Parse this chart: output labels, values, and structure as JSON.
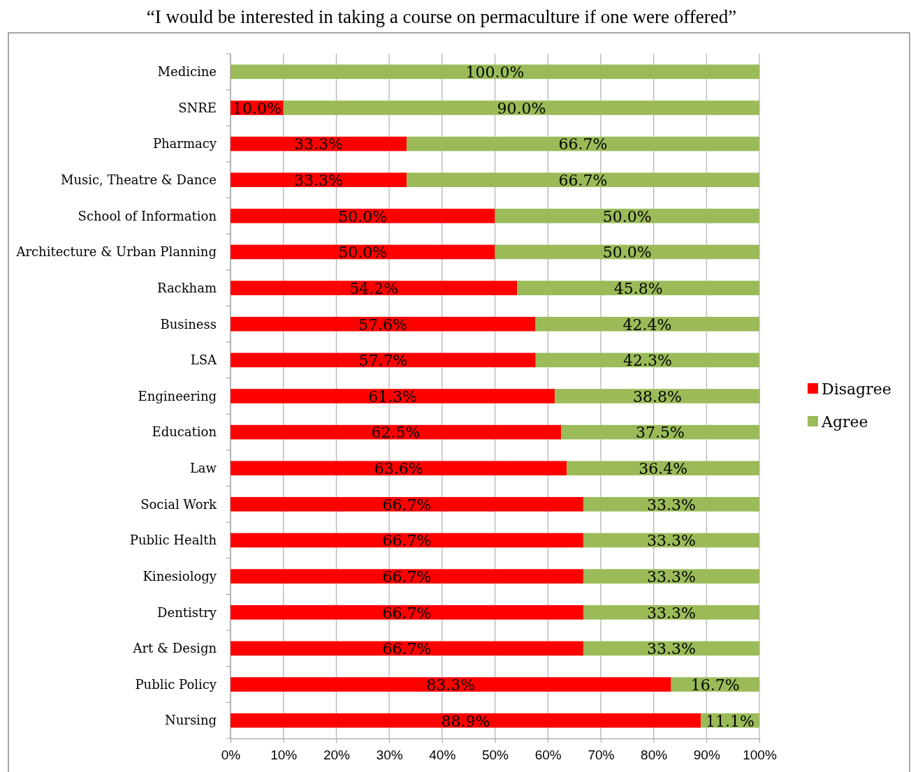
{
  "chart_data": {
    "type": "bar",
    "orientation": "horizontal",
    "stacked": true,
    "title": "“I would be interested in taking a course on permaculture if one were offered”",
    "categories": [
      "Medicine",
      "SNRE",
      "Pharmacy",
      "Music, Theatre & Dance",
      "School of Information",
      "Architecture & Urban Planning",
      "Rackham",
      "Business",
      "LSA",
      "Engineering",
      "Education",
      "Law",
      "Social Work",
      "Public Health",
      "Kinesiology",
      "Dentistry",
      "Art & Design",
      "Public Policy",
      "Nursing"
    ],
    "series": [
      {
        "name": "Disagree",
        "color": "#ff0000",
        "values": [
          0,
          10.0,
          33.3,
          33.3,
          50.0,
          50.0,
          54.2,
          57.6,
          57.7,
          61.3,
          62.5,
          63.6,
          66.7,
          66.7,
          66.7,
          66.7,
          66.7,
          83.3,
          88.9
        ],
        "value_labels": [
          null,
          "10.0%",
          "33.3%",
          "33.3%",
          "50.0%",
          "50.0%",
          "54.2%",
          "57.6%",
          "57.7%",
          "61.3%",
          "62.5%",
          "63.6%",
          "66.7%",
          "66.7%",
          "66.7%",
          "66.7%",
          "66.7%",
          "83.3%",
          "88.9%"
        ]
      },
      {
        "name": "Agree",
        "color": "#9bbb59",
        "values": [
          100.0,
          90.0,
          66.7,
          66.7,
          50.0,
          50.0,
          45.8,
          42.4,
          42.3,
          38.8,
          37.5,
          36.4,
          33.3,
          33.3,
          33.3,
          33.3,
          33.3,
          16.7,
          11.1
        ],
        "value_labels": [
          "100.0%",
          "90.0%",
          "66.7%",
          "66.7%",
          "50.0%",
          "50.0%",
          "45.8%",
          "42.4%",
          "42.3%",
          "38.8%",
          "37.5%",
          "36.4%",
          "33.3%",
          "33.3%",
          "33.3%",
          "33.3%",
          "33.3%",
          "16.7%",
          "11.1%"
        ]
      }
    ],
    "xlim": [
      0,
      100
    ],
    "xticks": [
      {
        "value": 0,
        "label": "0%"
      },
      {
        "value": 10,
        "label": "10%"
      },
      {
        "value": 20,
        "label": "20%"
      },
      {
        "value": 30,
        "label": "30%"
      },
      {
        "value": 40,
        "label": "40%"
      },
      {
        "value": 50,
        "label": "50%"
      },
      {
        "value": 60,
        "label": "60%"
      },
      {
        "value": 70,
        "label": "70%"
      },
      {
        "value": 80,
        "label": "80%"
      },
      {
        "value": 90,
        "label": "90%"
      },
      {
        "value": 100,
        "label": "100%"
      }
    ],
    "grid": "x",
    "legend": "right"
  }
}
